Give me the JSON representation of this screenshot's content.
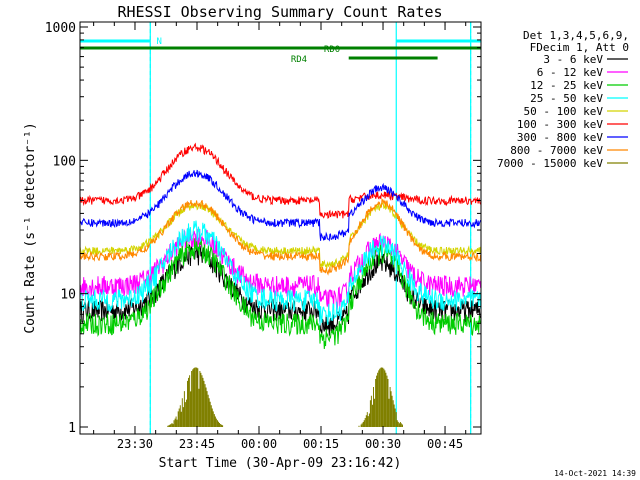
{
  "chart_data": {
    "type": "line",
    "title": "RHESSI Observing Summary Count Rates",
    "xlabel": "Start Time (30-Apr-09 23:16:42)",
    "ylabel": "Count Rate (s⁻¹ detector⁻¹)",
    "y_scale": "log",
    "ylim": [
      1,
      1000
    ],
    "xlim_minutes": [
      0,
      97
    ],
    "x_ticks": [
      {
        "label": "23:30",
        "minute": 13.3
      },
      {
        "label": "23:45",
        "minute": 28.3
      },
      {
        "label": "00:00",
        "minute": 43.3
      },
      {
        "label": "00:15",
        "minute": 58.3
      },
      {
        "label": "00:30",
        "minute": 73.3
      },
      {
        "label": "00:45",
        "minute": 88.3
      }
    ],
    "y_ticks": [
      {
        "label": "1",
        "value": 1
      },
      {
        "label": "10",
        "value": 10
      },
      {
        "label": "100",
        "value": 100
      },
      {
        "label": "1000",
        "value": 1000
      }
    ],
    "legend_header": [
      "Det 1,3,4,5,6,9,",
      "FDecim 1, Att 0"
    ],
    "series": [
      {
        "name": "3 - 6 keV",
        "color": "#000000",
        "base": 7.5,
        "peak1": 20,
        "peak2": 17
      },
      {
        "name": "6 - 12 keV",
        "color": "#ff00ff",
        "base": 11.5,
        "peak1": 27,
        "peak2": 24
      },
      {
        "name": "12 - 25 keV",
        "color": "#00cc00",
        "base": 6,
        "peak1": 22,
        "peak2": 20
      },
      {
        "name": "25 - 50 keV",
        "color": "#00ffff",
        "base": 9,
        "peak1": 30,
        "peak2": 23
      },
      {
        "name": "50 - 100 keV",
        "color": "#d4d400",
        "base": 21,
        "peak1": 46,
        "peak2": 45
      },
      {
        "name": "100 - 300 keV",
        "color": "#ff0000",
        "base": 50,
        "peak1": 125,
        "peak2": 55
      },
      {
        "name": "300 - 800 keV",
        "color": "#0000ff",
        "base": 34,
        "peak1": 80,
        "peak2": 62
      },
      {
        "name": "800 - 7000 keV",
        "color": "#ff8800",
        "base": 19,
        "peak1": 48,
        "peak2": 48
      },
      {
        "name": "7000 - 15000 keV",
        "color": "#808000",
        "base": 1,
        "peak1": 2.8,
        "peak2": 2.8
      }
    ],
    "night_intervals_minutes": [
      [
        0,
        17
      ],
      [
        76.5,
        94.5
      ]
    ],
    "saa_lines_minutes": [
      17,
      94.5
    ],
    "flags": [
      {
        "label": "N",
        "color": "#00ffff",
        "level": "top",
        "segments": [
          [
            0,
            17
          ],
          [
            76.5,
            97
          ]
        ],
        "label_at": 18.5
      },
      {
        "label": "RD0",
        "color": "#008000",
        "level": "middle",
        "segments": [
          [
            0,
            97
          ]
        ],
        "label_at": 59
      },
      {
        "label": "RD4",
        "color": "#008000",
        "level": "lower",
        "segments": [
          [
            65,
            86.5
          ]
        ],
        "label_at": 51
      }
    ]
  },
  "footer": {
    "timestamp": "14-Oct-2021 14:39"
  }
}
